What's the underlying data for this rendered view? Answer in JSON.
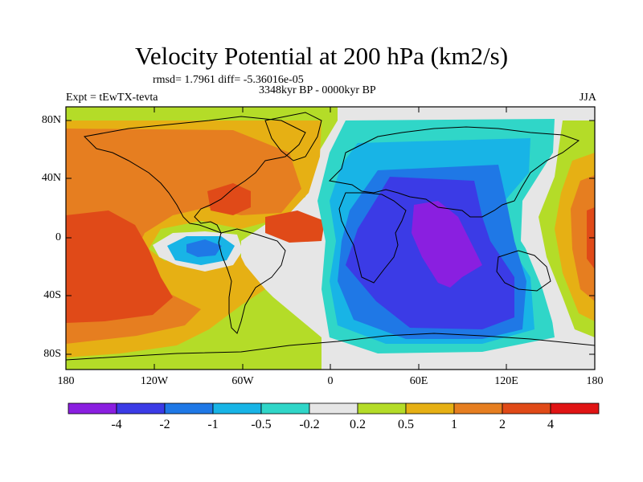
{
  "title": "Velocity Potential at 200 hPa (km2/s)",
  "stats": "rmsd= 1.7961 diff= -5.36016e-05",
  "period": "3348kyr BP - 0000kyr BP",
  "experiment": "Expt = tEwTX-tevta",
  "season": "JJA",
  "lat_labels": [
    "80N",
    "40N",
    "0",
    "40S",
    "80S"
  ],
  "lon_labels": [
    "180",
    "120W",
    "60W",
    "0",
    "60E",
    "120E",
    "180"
  ],
  "colorbar": {
    "labels": [
      "-4",
      "-2",
      "-1",
      "-0.5",
      "-0.2",
      "0.2",
      "0.5",
      "1",
      "2",
      "4"
    ],
    "colors": [
      "#8a1fe0",
      "#3b3be6",
      "#1f78e6",
      "#18b4e6",
      "#30d6c8",
      "#e6e6e6",
      "#b4dc28",
      "#e6b014",
      "#e67e20",
      "#e04a18",
      "#e01414"
    ]
  },
  "map_colors": {
    "purple": "#8a1fe0",
    "darkblue": "#3b3be6",
    "blue": "#1f78e6",
    "cyan": "#18b4e6",
    "teal": "#30d6c8",
    "white": "#e6e6e6",
    "green": "#b4dc28",
    "yellow": "#e6b014",
    "orange": "#e67e20",
    "redorange": "#e04a18"
  }
}
